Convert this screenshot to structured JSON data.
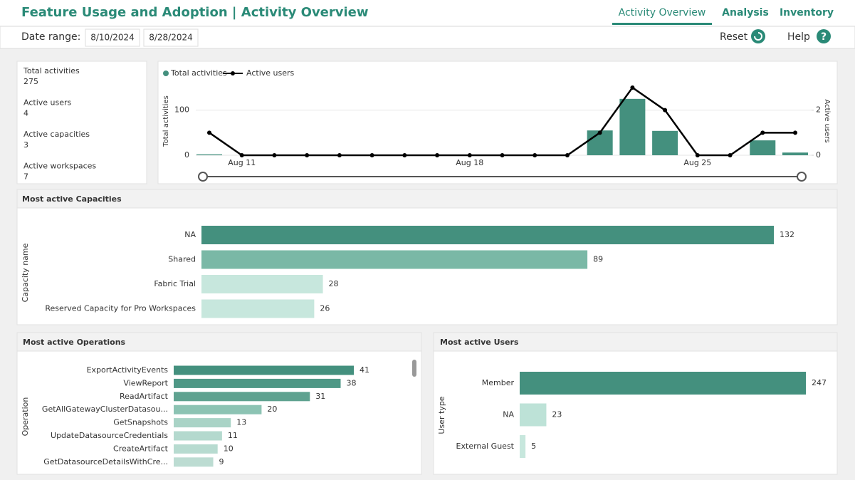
{
  "header": {
    "title": "Feature Usage and Adoption | Activity Overview",
    "tabs": [
      "Activity Overview",
      "Analysis",
      "Inventory"
    ],
    "date_range_label": "Date range:",
    "start_date": "8/10/2024",
    "end_date": "8/28/2024",
    "reset": "Reset",
    "help": "Help",
    "help_icon": "?"
  },
  "kpis": [
    {
      "label": "Total activities",
      "value": 275
    },
    {
      "label": "Active users",
      "value": 4
    },
    {
      "label": "Active capacities",
      "value": 3
    },
    {
      "label": "Active workspaces",
      "value": 7
    }
  ],
  "chart_data": [
    {
      "type": "combo",
      "categories": [
        null,
        "Aug 11",
        null,
        null,
        null,
        null,
        null,
        null,
        "Aug 18",
        null,
        null,
        null,
        null,
        null,
        null,
        "Aug 25",
        null,
        null,
        null
      ],
      "series": [
        {
          "name": "Total activities",
          "kind": "bar",
          "color": "#44907e",
          "values": [
            2,
            0,
            0,
            0,
            0,
            0,
            0,
            0,
            0,
            0,
            0,
            0,
            55,
            125,
            54,
            0,
            0,
            33,
            6
          ]
        },
        {
          "name": "Active users",
          "kind": "line",
          "axis": "y2",
          "color": "#000000",
          "values": [
            1,
            0,
            0,
            0,
            0,
            0,
            0,
            0,
            0,
            0,
            0,
            0,
            1,
            3,
            2,
            0,
            0,
            1,
            1
          ]
        }
      ],
      "y_label": "Total activities",
      "y2_label": "Active users",
      "ylim": [
        0,
        150
      ],
      "yticks": [
        0,
        100
      ],
      "y2lim": [
        0,
        3
      ],
      "y2ticks": [
        0,
        2
      ],
      "grid": true
    },
    {
      "type": "hbar",
      "title": "Most active Capacities",
      "y_label": "Capacity name",
      "categories": [
        "NA",
        "Shared",
        "Fabric Trial",
        "Reserved Capacity for Pro Workspaces"
      ],
      "values": [
        132,
        89,
        28,
        26
      ],
      "colors": [
        "#44907e",
        "#7ab8a6",
        "#c7e7dd",
        "#c7e7dd"
      ]
    },
    {
      "type": "hbar",
      "title": "Most active Operations",
      "y_label": "Operation",
      "categories": [
        "ExportActivityEvents",
        "ViewReport",
        "ReadArtifact",
        "GetAllGatewayClusterDatasou...",
        "GetSnapshots",
        "UpdateDatasourceCredentials",
        "CreateArtifact",
        "GetDatasourceDetailsWithCre..."
      ],
      "values": [
        41,
        38,
        31,
        20,
        13,
        11,
        10,
        9
      ],
      "colors": [
        "#44907e",
        "#4f9886",
        "#5fa290",
        "#8cc3b3",
        "#a9d3c6",
        "#b4d9ce",
        "#b7dbd0",
        "#bcdcd2"
      ]
    },
    {
      "type": "hbar",
      "title": "Most active Users",
      "y_label": "User type",
      "categories": [
        "Member",
        "NA",
        "External Guest"
      ],
      "values": [
        247,
        23,
        5
      ],
      "colors": [
        "#44907e",
        "#bde2d7",
        "#c7e7dd"
      ]
    }
  ]
}
